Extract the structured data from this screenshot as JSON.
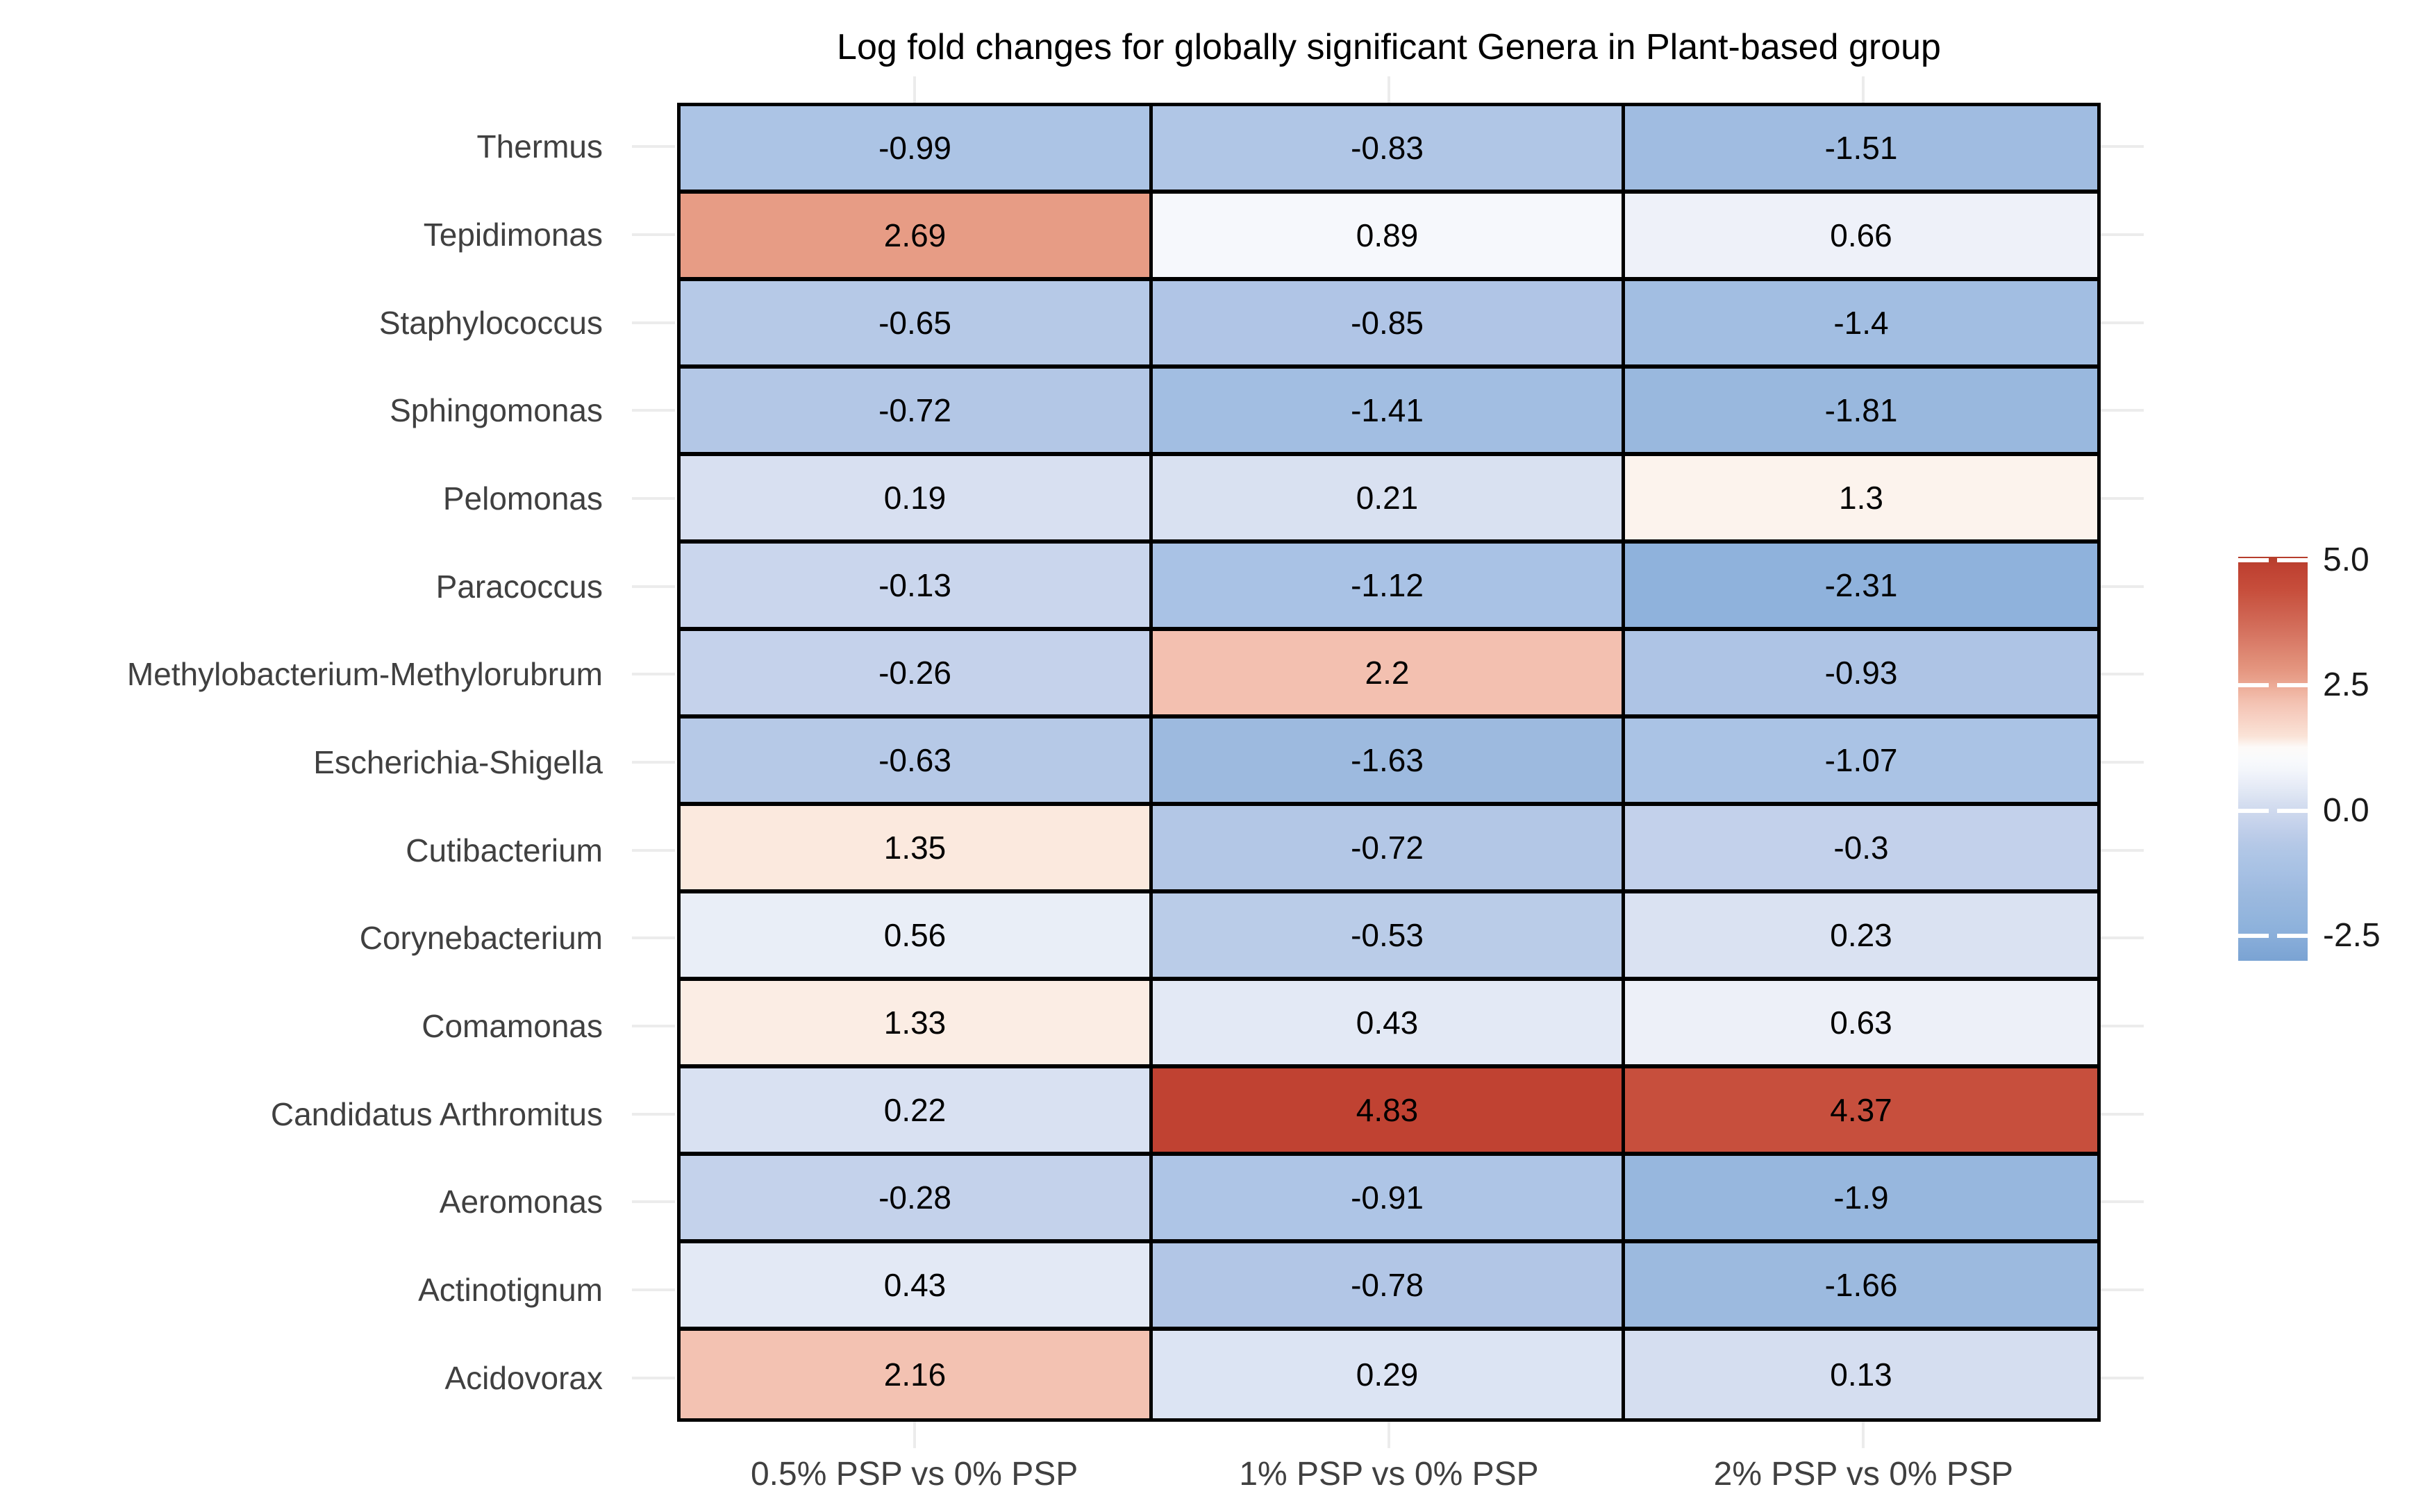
{
  "title": "Log fold changes for globally significant Genera in Plant-based group",
  "chart_data": {
    "type": "heatmap",
    "title": "Log fold changes for globally significant Genera in Plant-based group",
    "rows": [
      "Thermus",
      "Tepidimonas",
      "Staphylococcus",
      "Sphingomonas",
      "Pelomonas",
      "Paracoccus",
      "Methylobacterium-Methylorubrum",
      "Escherichia-Shigella",
      "Cutibacterium",
      "Corynebacterium",
      "Comamonas",
      "Candidatus Arthromitus",
      "Aeromonas",
      "Actinotignum",
      "Acidovorax"
    ],
    "columns": [
      "0.5% PSP vs 0% PSP",
      "1% PSP vs 0% PSP",
      "2% PSP vs 0% PSP"
    ],
    "values": [
      [
        -0.99,
        -0.83,
        -1.51
      ],
      [
        2.69,
        0.89,
        0.66
      ],
      [
        -0.65,
        -0.85,
        -1.4
      ],
      [
        -0.72,
        -1.41,
        -1.81
      ],
      [
        0.19,
        0.21,
        1.3
      ],
      [
        -0.13,
        -1.12,
        -2.31
      ],
      [
        -0.26,
        2.2,
        -0.93
      ],
      [
        -0.63,
        -1.63,
        -1.07
      ],
      [
        1.35,
        -0.72,
        -0.3
      ],
      [
        0.56,
        -0.53,
        0.23
      ],
      [
        1.33,
        0.43,
        0.63
      ],
      [
        0.22,
        4.83,
        4.37
      ],
      [
        -0.28,
        -0.91,
        -1.9
      ],
      [
        0.43,
        -0.78,
        -1.66
      ],
      [
        2.16,
        0.29,
        0.13
      ]
    ],
    "legend": {
      "position": "right",
      "bar_top_value": 5.07,
      "bar_bottom_value": -3.0,
      "ticks": [
        {
          "label": "5.0",
          "value": 5.0
        },
        {
          "label": "2.5",
          "value": 2.5
        },
        {
          "label": "0.0",
          "value": 0.0
        },
        {
          "label": "-2.5",
          "value": -2.5
        }
      ]
    },
    "color_scale": {
      "type": "diverging-blue-white-red",
      "stops": [
        [
          -3.0,
          "#7aa3d3"
        ],
        [
          -2.31,
          "#8fb2dc"
        ],
        [
          -1.66,
          "#9cbadf"
        ],
        [
          -1.12,
          "#a9c2e5"
        ],
        [
          -0.72,
          "#b3c7e6"
        ],
        [
          -0.3,
          "#c3d1eb"
        ],
        [
          0.13,
          "#d5def0"
        ],
        [
          0.43,
          "#e3e9f5"
        ],
        [
          0.66,
          "#eef1f9"
        ],
        [
          0.89,
          "#f6f8fc"
        ],
        [
          1.25,
          "#fdfcfb"
        ],
        [
          1.35,
          "#fbe9de"
        ],
        [
          2.2,
          "#f3c0b0"
        ],
        [
          2.69,
          "#e79c85"
        ],
        [
          3.5,
          "#d67562"
        ],
        [
          4.37,
          "#c74f3d"
        ],
        [
          4.83,
          "#c04232"
        ],
        [
          5.1,
          "#b43e2b"
        ]
      ]
    },
    "grid": "gridline stubs visible outside panel at row and column positions"
  },
  "colors": {
    "cell_border": "#000000",
    "cell_value_text": "#000000",
    "axis_label_text": "#404040",
    "legend_label_text": "#1a1a1a",
    "title_text": "#000000",
    "gridline_stub": "#ececec",
    "background": "#ffffff"
  }
}
